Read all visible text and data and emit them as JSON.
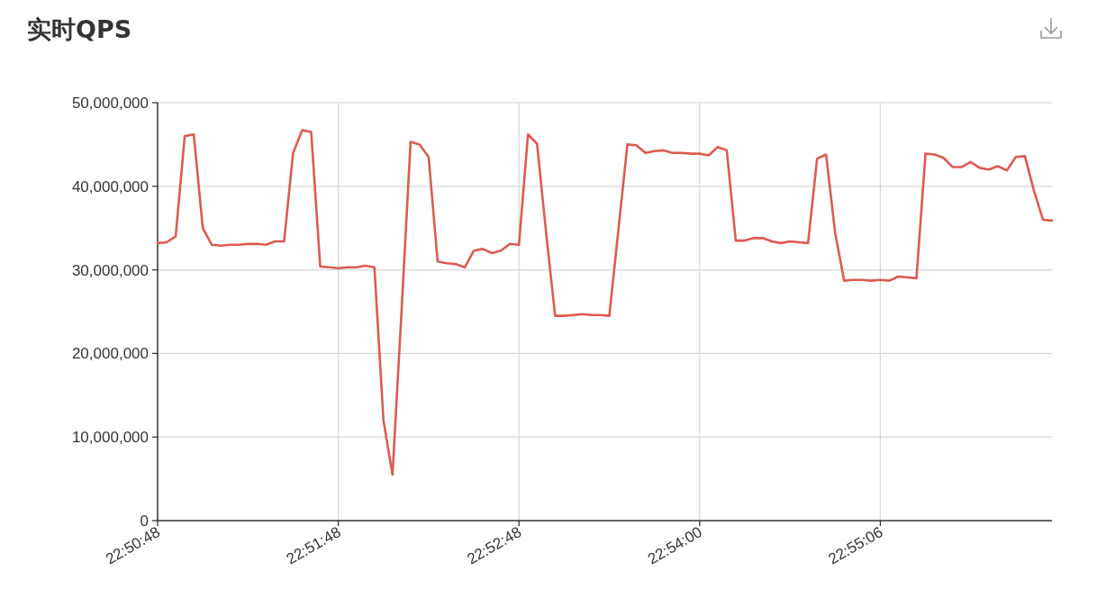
{
  "chart_data": {
    "type": "line",
    "title": "实时QPS",
    "categories": [
      "22:50:48",
      null,
      null,
      null,
      null,
      null,
      null,
      null,
      null,
      null,
      null,
      null,
      null,
      null,
      null,
      null,
      null,
      null,
      null,
      null,
      "22:51:48",
      null,
      null,
      null,
      null,
      null,
      null,
      null,
      null,
      null,
      null,
      null,
      null,
      null,
      null,
      null,
      null,
      null,
      null,
      null,
      "22:52:48",
      null,
      null,
      null,
      null,
      null,
      null,
      null,
      null,
      null,
      null,
      null,
      null,
      null,
      null,
      null,
      null,
      null,
      null,
      null,
      "22:54:00",
      null,
      null,
      null,
      null,
      null,
      null,
      null,
      null,
      null,
      null,
      null,
      null,
      null,
      null,
      null,
      null,
      null,
      null,
      null,
      "22:55:06",
      null,
      null,
      null,
      null,
      null,
      null,
      null,
      null,
      null,
      null,
      null,
      null,
      null,
      null,
      null,
      null,
      null,
      null,
      null
    ],
    "series": [
      {
        "color": "#dd5a52",
        "values": [
          33200000,
          33300000,
          34000000,
          46000000,
          46200000,
          35000000,
          33000000,
          32900000,
          33000000,
          33000000,
          33100000,
          33100000,
          33000000,
          33400000,
          33400000,
          44000000,
          46700000,
          46500000,
          30400000,
          30300000,
          30200000,
          30300000,
          30300000,
          30500000,
          30300000,
          12000000,
          5500000,
          25000000,
          45300000,
          45000000,
          43500000,
          31000000,
          30800000,
          30700000,
          30300000,
          32300000,
          32500000,
          32000000,
          32300000,
          33100000,
          33000000,
          46200000,
          45100000,
          34500000,
          24500000,
          24500000,
          24600000,
          24700000,
          24600000,
          24600000,
          24500000,
          34700000,
          45000000,
          44900000,
          44000000,
          44200000,
          44300000,
          44000000,
          44000000,
          43900000,
          43900000,
          43700000,
          44700000,
          44300000,
          33500000,
          33500000,
          33800000,
          33800000,
          33400000,
          33200000,
          33400000,
          33300000,
          33200000,
          43300000,
          43800000,
          34400000,
          28700000,
          28800000,
          28800000,
          28700000,
          28800000,
          28700000,
          29200000,
          29100000,
          29000000,
          43900000,
          43800000,
          43400000,
          42300000,
          42300000,
          42900000,
          42200000,
          42000000,
          42400000,
          41900000,
          43500000,
          43600000,
          39500000,
          36000000,
          35900000
        ]
      }
    ],
    "ylim": [
      0,
      50000000
    ],
    "yticks": [
      {
        "value": 0,
        "label": "0"
      },
      {
        "value": 10000000,
        "label": "10,000,000"
      },
      {
        "value": 20000000,
        "label": "20,000,000"
      },
      {
        "value": 30000000,
        "label": "30,000,000"
      },
      {
        "value": 40000000,
        "label": "40,000,000"
      },
      {
        "value": 50000000,
        "label": "50,000,000"
      }
    ],
    "grid": true,
    "line_style": "solid"
  }
}
